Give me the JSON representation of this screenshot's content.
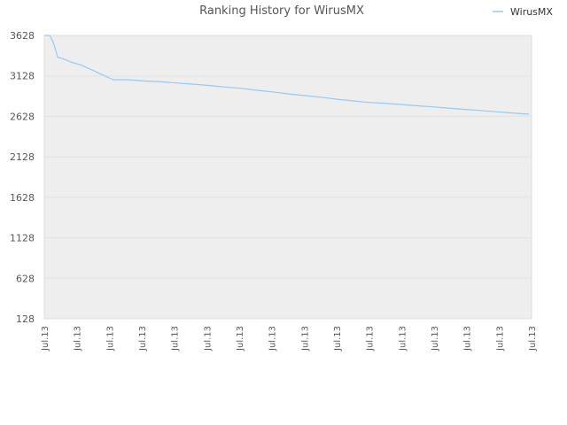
{
  "chart_data": {
    "type": "line",
    "title": "Ranking History for WirusMX",
    "xlabel": "",
    "ylabel": "",
    "y_reversed": true,
    "ylim": [
      3628,
      128
    ],
    "yticks": [
      "128",
      "628",
      "1128",
      "1628",
      "2128",
      "2628",
      "3128",
      "3628"
    ],
    "yticks_values": [
      128,
      628,
      1128,
      1628,
      2128,
      2628,
      3128,
      3628
    ],
    "xticks": [
      "Jul.13",
      "Jul.13",
      "Jul.13",
      "Jul.13",
      "Jul.13",
      "Jul.13",
      "Jul.13",
      "Jul.13",
      "Jul.13",
      "Jul.13",
      "Jul.13",
      "Jul.13",
      "Jul.13",
      "Jul.13",
      "Jul.13",
      "Jul.13"
    ],
    "grid": "alternating horizontal bands",
    "legend_position": "top-right",
    "series": [
      {
        "name": "WirusMX",
        "color": "#99c8f0",
        "x": [
          0,
          1,
          3,
          6,
          9,
          12,
          15,
          21,
          30,
          42,
          60,
          78,
          96,
          114,
          132,
          150,
          168,
          186,
          204,
          222,
          240,
          258,
          276,
          294,
          312,
          330,
          348,
          366,
          384,
          402,
          420,
          438,
          456,
          474,
          492,
          510,
          528,
          547
        ],
        "y": [
          3628,
          3628,
          3628,
          3628,
          3570,
          3480,
          3360,
          3340,
          3300,
          3260,
          3170,
          3080,
          3080,
          3065,
          3055,
          3040,
          3025,
          3010,
          2990,
          2975,
          2950,
          2930,
          2905,
          2885,
          2865,
          2840,
          2820,
          2800,
          2790,
          2775,
          2760,
          2745,
          2730,
          2715,
          2700,
          2685,
          2670,
          2655
        ]
      }
    ]
  }
}
